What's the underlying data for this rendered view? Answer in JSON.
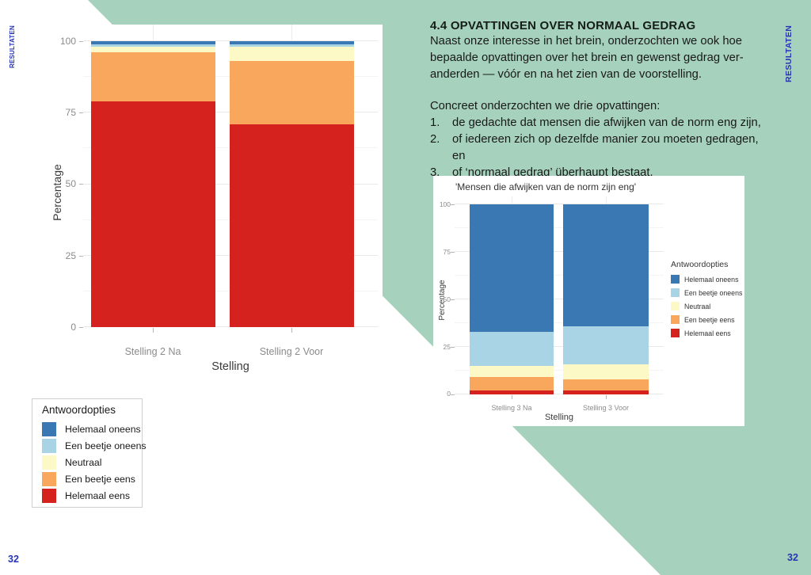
{
  "page": {
    "side_label": "RESULTATEN",
    "page_number": "32",
    "colors": {
      "teal": "#a6d2bd",
      "accent_blue": "#2735b5"
    }
  },
  "text_block": {
    "heading": "4.4 OPVATTINGEN OVER NORMAAL GEDRAG",
    "paragraph_lines": [
      "Naast onze interesse in het brein, onderzochten we ook hoe",
      "bepaalde opvattingen over het brein en gewenst gedrag ver-",
      "anderden — vóór en na het zien van de voorstelling."
    ],
    "intro": "Concreet onderzochten we drie opvattingen:",
    "list": [
      {
        "num": "1.",
        "line1": "de gedachte dat mensen die afwijken van de norm eng zijn,",
        "line2": ""
      },
      {
        "num": "2.",
        "line1": "of iedereen zich op dezelfde manier zou moeten gedragen,",
        "line2": "en"
      },
      {
        "num": "3.",
        "line1": "of ‘normaal gedrag’ überhaupt bestaat.",
        "line2": ""
      }
    ]
  },
  "legend": {
    "title": "Antwoordopties",
    "items": [
      {
        "label": "Helemaal oneens",
        "color": "#3a78b3"
      },
      {
        "label": "Een beetje oneens",
        "color": "#a9d4e5"
      },
      {
        "label": "Neutraal",
        "color": "#fdf9c6"
      },
      {
        "label": "Een beetje eens",
        "color": "#f9a75d"
      },
      {
        "label": "Helemaal eens",
        "color": "#d6221f"
      }
    ]
  },
  "chart_data": [
    {
      "type": "bar",
      "stacked": true,
      "title": "",
      "categories": [
        "Stelling 2 Na",
        "Stelling 2 Voor"
      ],
      "series": [
        {
          "name": "Helemaal eens",
          "color": "#d6221f",
          "values": [
            79,
            71
          ]
        },
        {
          "name": "Een beetje eens",
          "color": "#f9a75d",
          "values": [
            17,
            22
          ]
        },
        {
          "name": "Neutraal",
          "color": "#fdf9c6",
          "values": [
            2,
            5
          ]
        },
        {
          "name": "Een beetje oneens",
          "color": "#a9d4e5",
          "values": [
            1,
            1
          ]
        },
        {
          "name": "Helemaal oneens",
          "color": "#3a78b3",
          "values": [
            1,
            1
          ]
        }
      ],
      "xlabel": "Stelling",
      "ylabel": "Percentage",
      "yticks": [
        0,
        25,
        50,
        75,
        100
      ],
      "ylim": [
        0,
        100
      ],
      "grid": true,
      "legend_title": "Antwoordopties",
      "legend_position": "separate-box-bottom-left"
    },
    {
      "type": "bar",
      "stacked": true,
      "title": "'Mensen die afwijken van de norm zijn eng'",
      "categories": [
        "Stelling 3 Na",
        "Stelling 3 Voor"
      ],
      "series": [
        {
          "name": "Helemaal eens",
          "color": "#d6221f",
          "values": [
            2,
            2
          ]
        },
        {
          "name": "Een beetje eens",
          "color": "#f9a75d",
          "values": [
            7,
            6
          ]
        },
        {
          "name": "Neutraal",
          "color": "#fdf9c6",
          "values": [
            6,
            8
          ]
        },
        {
          "name": "Een beetje oneens",
          "color": "#a9d4e5",
          "values": [
            18,
            20
          ]
        },
        {
          "name": "Helemaal oneens",
          "color": "#3a78b3",
          "values": [
            67,
            64
          ]
        }
      ],
      "xlabel": "Stelling",
      "ylabel": "Percentage",
      "yticks": [
        0,
        25,
        50,
        75,
        100
      ],
      "ylim": [
        0,
        100
      ],
      "grid": true,
      "legend_title": "Antwoordopties",
      "legend_position": "right"
    }
  ]
}
